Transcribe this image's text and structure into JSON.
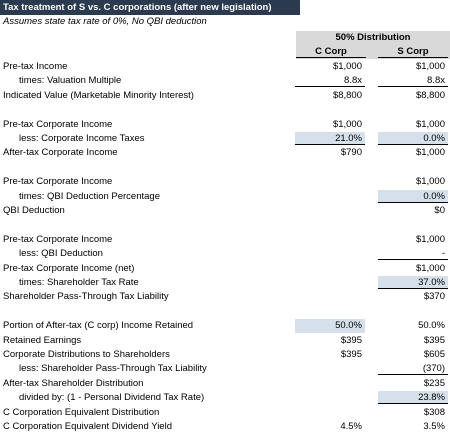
{
  "header": {
    "title": "Tax treatment of S vs. C corporations (after new legislation)",
    "subtitle": "Assumes state tax rate of 0%, No QBI deduction"
  },
  "table": {
    "group_header": "50% Distribution",
    "columns": [
      "C Corp",
      "S Corp"
    ],
    "sections": [
      [
        {
          "label": "Pre-tax Income",
          "c": "$1,000",
          "s": "$1,000"
        },
        {
          "label": "times: Valuation Multiple",
          "c": "8.8x",
          "s": "8.8x"
        },
        {
          "label": "Indicated Value (Marketable Minority Interest)",
          "c": "$8,800",
          "s": "$8,800"
        }
      ],
      [
        {
          "label": "Pre-tax Corporate Income",
          "c": "$1,000",
          "s": "$1,000"
        },
        {
          "label": "less: Corporate Income Taxes",
          "c": "21.0%",
          "s": "0.0%"
        },
        {
          "label": "After-tax Corporate Income",
          "c": "$790",
          "s": "$1,000"
        }
      ],
      [
        {
          "label": "Pre-tax Corporate Income",
          "s": "$1,000"
        },
        {
          "label": "times: QBI Deduction Percentage",
          "s": "0.0%"
        },
        {
          "label": "QBI Deduction",
          "s": "$0"
        }
      ],
      [
        {
          "label": "Pre-tax Corporate Income",
          "s": "$1,000"
        },
        {
          "label": "less: QBI Deduction",
          "s": "-"
        },
        {
          "label": "Pre-tax Corporate Income (net)",
          "s": "$1,000"
        },
        {
          "label": "times: Shareholder Tax Rate",
          "s": "37.0%"
        },
        {
          "label": "Shareholder Pass-Through Tax Liability",
          "s": "$370"
        }
      ],
      [
        {
          "label": "Portion of After-tax (C corp) Income Retained",
          "c": "50.0%",
          "s": "50.0%"
        },
        {
          "label": "Retained Earnings",
          "c": "$395",
          "s": "$395"
        },
        {
          "label": "Corporate Distributions to Shareholders",
          "c": "$395",
          "s": "$605"
        },
        {
          "label": "less: Shareholder Pass-Through Tax Liability",
          "s": "(370)"
        },
        {
          "label": "After-tax Shareholder Distribution",
          "s": "$235"
        },
        {
          "label": "divided by: (1 - Personal Dividend Tax Rate)",
          "s": "23.8%"
        },
        {
          "label": "C Corporation Equivalent Distribution",
          "s": "$308"
        },
        {
          "label": "C Corporation Equivalent Dividend Yield",
          "c": "4.5%",
          "s": "3.5%"
        }
      ]
    ]
  }
}
